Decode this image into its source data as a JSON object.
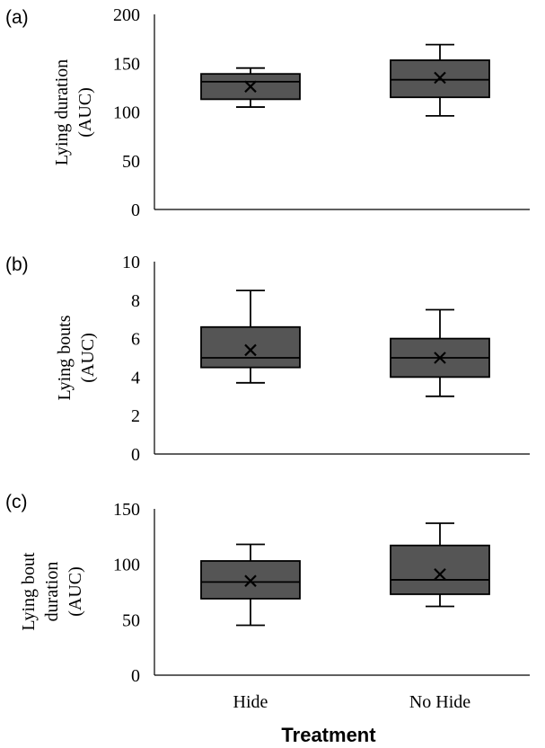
{
  "chart_data": [
    {
      "panel": "(a)",
      "type": "box",
      "ylabel": [
        "Lying duration",
        "(AUC)"
      ],
      "ylim": [
        0,
        200
      ],
      "yticks": [
        0,
        50,
        100,
        150,
        200
      ],
      "categories": [
        "Hide",
        "No Hide"
      ],
      "boxes": [
        {
          "name": "Hide",
          "min": 105,
          "q1": 113,
          "median": 131,
          "q3": 139,
          "max": 145,
          "mean": 126
        },
        {
          "name": "No Hide",
          "min": 96,
          "q1": 115,
          "median": 133,
          "q3": 153,
          "max": 169,
          "mean": 135
        }
      ]
    },
    {
      "panel": "(b)",
      "type": "box",
      "ylabel": [
        "Lying bouts",
        "(AUC)"
      ],
      "ylim": [
        0,
        10
      ],
      "yticks": [
        0,
        2,
        4,
        6,
        8,
        10
      ],
      "categories": [
        "Hide",
        "No Hide"
      ],
      "boxes": [
        {
          "name": "Hide",
          "min": 3.7,
          "q1": 4.5,
          "median": 5.0,
          "q3": 6.6,
          "max": 8.5,
          "mean": 5.4
        },
        {
          "name": "No Hide",
          "min": 3.0,
          "q1": 4.0,
          "median": 5.0,
          "q3": 6.0,
          "max": 7.5,
          "mean": 5.0
        }
      ]
    },
    {
      "panel": "(c)",
      "type": "box",
      "ylabel": [
        "Lying bout",
        "duration",
        "(AUC)"
      ],
      "ylim": [
        0,
        150
      ],
      "yticks": [
        0,
        50,
        100,
        150
      ],
      "categories": [
        "Hide",
        "No Hide"
      ],
      "boxes": [
        {
          "name": "Hide",
          "min": 45,
          "q1": 69,
          "median": 84,
          "q3": 103,
          "max": 118,
          "mean": 85
        },
        {
          "name": "No Hide",
          "min": 62,
          "q1": 73,
          "median": 86,
          "q3": 117,
          "max": 137,
          "mean": 91
        }
      ]
    }
  ],
  "xaxis": {
    "categories": [
      "Hide",
      "No Hide"
    ],
    "title": "Treatment"
  },
  "colors": {
    "box_fill": "#555555",
    "axis": "#000000"
  }
}
